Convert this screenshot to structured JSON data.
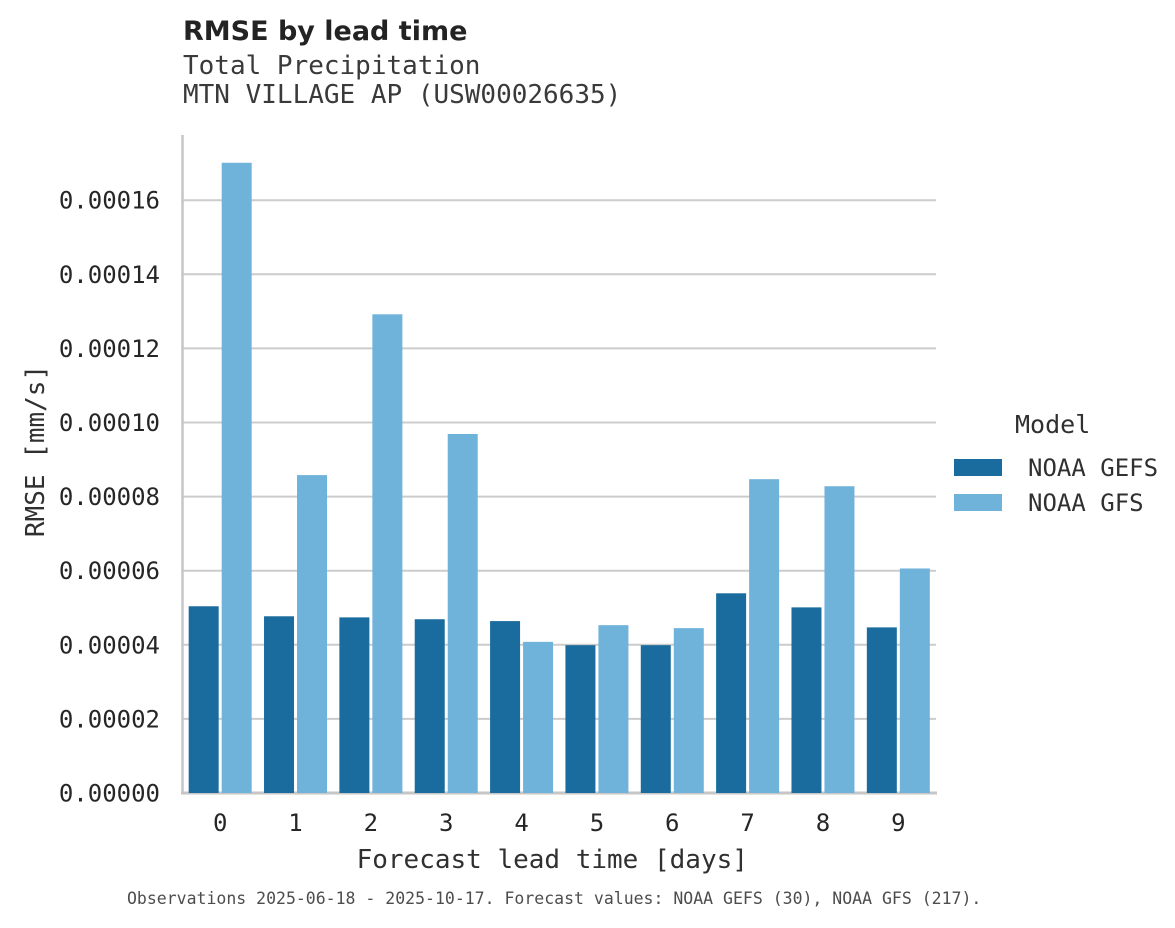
{
  "header": {
    "title": "RMSE by lead time",
    "subtitle_line1": "Total Precipitation",
    "subtitle_line2": "MTN VILLAGE AP (USW00026635)"
  },
  "legend": {
    "title": "Model",
    "entries": [
      {
        "label": "NOAA GEFS",
        "color": "#1a6c9e"
      },
      {
        "label": "NOAA GFS",
        "color": "#6fb2da"
      }
    ]
  },
  "footer": {
    "caption": "Observations 2025-06-18 - 2025-10-17. Forecast values: NOAA GEFS (30), NOAA GFS (217)."
  },
  "chart_data": {
    "type": "bar",
    "title": "RMSE by lead time",
    "subtitle": [
      "Total Precipitation",
      "MTN VILLAGE AP (USW00026635)"
    ],
    "xlabel": "Forecast lead time [days]",
    "ylabel": "RMSE [mm/s]",
    "categories": [
      "0",
      "1",
      "2",
      "3",
      "4",
      "5",
      "6",
      "7",
      "8",
      "9"
    ],
    "series": [
      {
        "name": "NOAA GEFS",
        "color": "#1a6c9e",
        "values": [
          5.04e-05,
          4.77e-05,
          4.74e-05,
          4.69e-05,
          4.64e-05,
          3.99e-05,
          3.99e-05,
          5.39e-05,
          5.01e-05,
          4.47e-05
        ]
      },
      {
        "name": "NOAA GFS",
        "color": "#6fb2da",
        "values": [
          0.0001701,
          8.58e-05,
          0.0001292,
          9.69e-05,
          4.08e-05,
          4.53e-05,
          4.45e-05,
          8.47e-05,
          8.28e-05,
          6.06e-05
        ]
      }
    ],
    "ylim": [
      0,
      0.000178
    ],
    "yticks": [
      0.0,
      2e-05,
      4e-05,
      6e-05,
      8e-05,
      0.0001,
      0.00012,
      0.00014,
      0.00016
    ],
    "ytick_labels": [
      "0.00000",
      "0.00002",
      "0.00004",
      "0.00006",
      "0.00008",
      "0.00010",
      "0.00012",
      "0.00014",
      "0.00016"
    ],
    "grid": "horizontal",
    "legend_title": "Model",
    "legend_position": "right"
  },
  "colors": {
    "grid": "#cccccc",
    "spine": "#c6c6c6",
    "tick_text": "#262626",
    "axis_text": "#303030"
  }
}
